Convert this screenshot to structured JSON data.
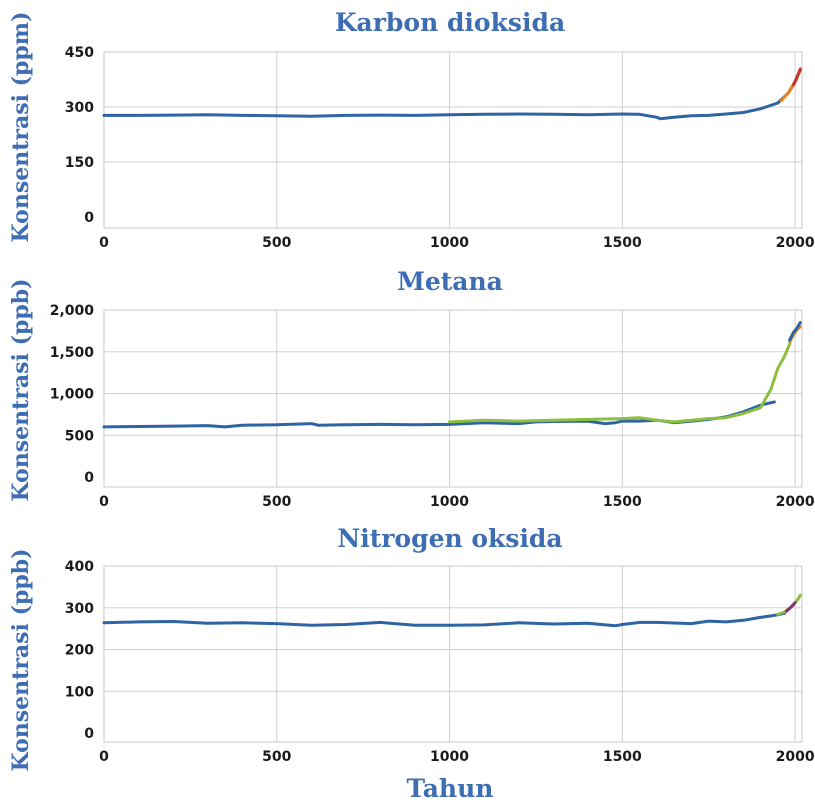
{
  "chart_data": [
    {
      "type": "line",
      "title": "Karbon dioksida",
      "ylabel": "Konsentrasi (ppm)",
      "xlabel": "",
      "xlim": [
        0,
        2020
      ],
      "ylim": [
        0,
        450
      ],
      "xticks": [
        0,
        500,
        1000,
        1500,
        2000
      ],
      "yticks": [
        0,
        150,
        300,
        450
      ],
      "ytick_labels": [
        "0",
        "150",
        "300",
        "450"
      ],
      "grid": true,
      "series": [
        {
          "color": "#2f64a3",
          "x": [
            0,
            100,
            200,
            300,
            400,
            500,
            600,
            700,
            800,
            900,
            1000,
            1100,
            1200,
            1300,
            1400,
            1500,
            1550,
            1600,
            1610,
            1650,
            1700,
            1750,
            1800,
            1850,
            1900,
            1950,
            1980,
            2000,
            2010,
            2015
          ],
          "y": [
            277,
            277,
            278,
            279,
            277,
            276,
            275,
            277,
            278,
            277,
            279,
            280,
            281,
            280,
            279,
            281,
            280,
            272,
            268,
            272,
            276,
            277,
            281,
            285,
            295,
            311,
            338,
            368,
            390,
            400
          ]
        },
        {
          "color": "#e8871e",
          "x": [
            1960,
            1980,
            2000,
            2010,
            2015
          ],
          "y": [
            317,
            339,
            370,
            390,
            401
          ]
        },
        {
          "color": "#c43a2a",
          "x": [
            1995,
            2005,
            2015
          ],
          "y": [
            360,
            380,
            404
          ]
        }
      ]
    },
    {
      "type": "line",
      "title": "Metana",
      "ylabel": "Konsentrasi (ppb)",
      "xlabel": "",
      "xlim": [
        0,
        2020
      ],
      "ylim": [
        0,
        2000
      ],
      "xticks": [
        0,
        500,
        1000,
        1500,
        2000
      ],
      "yticks": [
        0,
        500,
        1000,
        1500,
        2000
      ],
      "ytick_labels": [
        "0",
        "500",
        "1,000",
        "1,500",
        "2,000"
      ],
      "grid": true,
      "series": [
        {
          "color": "#2f64a3",
          "x": [
            0,
            100,
            200,
            300,
            350,
            400,
            500,
            600,
            620,
            700,
            800,
            900,
            1000,
            1100,
            1200,
            1250,
            1300,
            1400,
            1450,
            1480,
            1500,
            1550,
            1600,
            1650,
            1700,
            1750,
            1800,
            1850,
            1900,
            1940
          ],
          "y": [
            600,
            605,
            610,
            615,
            600,
            620,
            625,
            640,
            620,
            625,
            630,
            625,
            630,
            650,
            640,
            660,
            665,
            670,
            640,
            650,
            670,
            670,
            680,
            650,
            670,
            690,
            720,
            780,
            860,
            900
          ]
        },
        {
          "color": "#8cbf3f",
          "x": [
            1000,
            1100,
            1200,
            1300,
            1400,
            1500,
            1550,
            1600,
            1650,
            1700,
            1750,
            1800,
            1850,
            1900,
            1930,
            1950,
            1970,
            1985
          ],
          "y": [
            660,
            680,
            670,
            680,
            690,
            700,
            710,
            680,
            660,
            680,
            700,
            710,
            760,
            830,
            1050,
            1300,
            1450,
            1600
          ]
        },
        {
          "color": "#e8871e",
          "x": [
            1985,
            1995,
            2005,
            2015
          ],
          "y": [
            1620,
            1700,
            1760,
            1800
          ]
        },
        {
          "color": "#2f64a3",
          "x": [
            1984,
            1995,
            2005,
            2015
          ],
          "y": [
            1640,
            1730,
            1780,
            1850
          ]
        }
      ]
    },
    {
      "type": "line",
      "title": "Nitrogen oksida",
      "ylabel": "Konsentrasi (ppb)",
      "xlabel": "Tahun",
      "xlim": [
        0,
        2020
      ],
      "ylim": [
        0,
        400
      ],
      "xticks": [
        0,
        500,
        1000,
        1500,
        2000
      ],
      "yticks": [
        0,
        100,
        200,
        300,
        400
      ],
      "ytick_labels": [
        "0",
        "100",
        "200",
        "300",
        "400"
      ],
      "grid": true,
      "series": [
        {
          "color": "#2f64a3",
          "x": [
            0,
            100,
            200,
            300,
            400,
            500,
            600,
            700,
            800,
            900,
            1000,
            1100,
            1200,
            1300,
            1400,
            1480,
            1500,
            1550,
            1600,
            1700,
            1750,
            1800,
            1850,
            1900,
            1950,
            1970
          ],
          "y": [
            264,
            266,
            267,
            263,
            264,
            262,
            258,
            260,
            265,
            258,
            258,
            259,
            264,
            261,
            263,
            257,
            260,
            265,
            265,
            262,
            268,
            266,
            270,
            277,
            283,
            287
          ]
        },
        {
          "color": "#8cbf3f",
          "x": [
            1950,
            1970,
            1990,
            2000,
            2010,
            2015
          ],
          "y": [
            284,
            290,
            302,
            312,
            322,
            330
          ]
        },
        {
          "color": "#8a2f6e",
          "x": [
            1975,
            1990,
            2000
          ],
          "y": [
            292,
            303,
            312
          ]
        }
      ]
    }
  ]
}
